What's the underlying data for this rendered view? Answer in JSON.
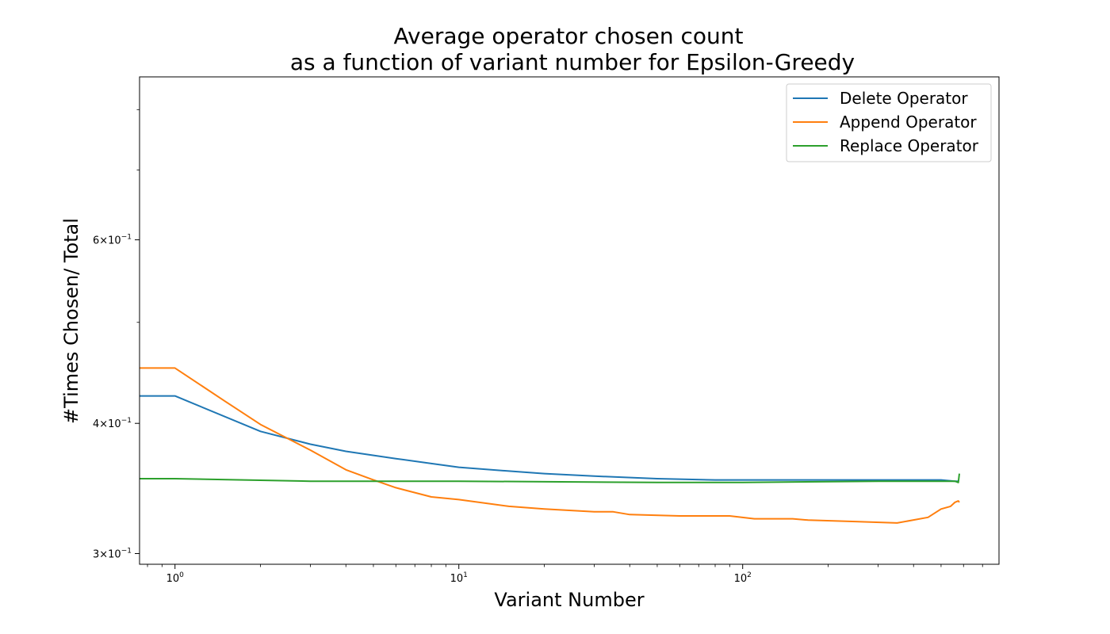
{
  "chart_data": {
    "type": "line",
    "title_line1": "Average operator chosen count",
    "title_line2": "as a function of variant number for Epsilon-Greedy",
    "xlabel": "Variant Number",
    "ylabel": "#Times Chosen/ Total",
    "xscale": "log",
    "yscale": "log",
    "xlim": [
      0.75,
      800
    ],
    "ylim": [
      0.293,
      0.86
    ],
    "xticks": [
      {
        "value": 1,
        "base": "10",
        "exp": "0"
      },
      {
        "value": 10,
        "base": "10",
        "exp": "1"
      },
      {
        "value": 100,
        "base": "10",
        "exp": "2"
      }
    ],
    "yticks": [
      {
        "value": 0.3,
        "mant": "3",
        "base": "10",
        "exp": "−1"
      },
      {
        "value": 0.4,
        "mant": "4",
        "base": "10",
        "exp": "−1"
      },
      {
        "value": 0.6,
        "mant": "6",
        "base": "10",
        "exp": "−1"
      }
    ],
    "yminor": [
      0.5,
      0.7,
      0.8
    ],
    "grid": false,
    "legend_position": "top-right",
    "series": [
      {
        "name": "Delete Operator",
        "color": "#1f77b4",
        "points": [
          [
            0.75,
            0.425
          ],
          [
            1,
            0.425
          ],
          [
            2,
            0.393
          ],
          [
            3,
            0.382
          ],
          [
            4,
            0.376
          ],
          [
            6,
            0.37
          ],
          [
            8,
            0.366
          ],
          [
            10,
            0.363
          ],
          [
            15,
            0.36
          ],
          [
            20,
            0.358
          ],
          [
            30,
            0.356
          ],
          [
            50,
            0.354
          ],
          [
            80,
            0.353
          ],
          [
            100,
            0.353
          ],
          [
            200,
            0.353
          ],
          [
            300,
            0.353
          ],
          [
            500,
            0.353
          ],
          [
            560,
            0.352
          ],
          [
            575,
            0.352
          ]
        ]
      },
      {
        "name": "Append Operator",
        "color": "#ff7f0e",
        "points": [
          [
            0.75,
            0.452
          ],
          [
            1,
            0.452
          ],
          [
            1.5,
            0.42
          ],
          [
            2,
            0.399
          ],
          [
            3,
            0.377
          ],
          [
            4,
            0.361
          ],
          [
            5,
            0.353
          ],
          [
            6,
            0.347
          ],
          [
            8,
            0.34
          ],
          [
            10,
            0.338
          ],
          [
            15,
            0.333
          ],
          [
            20,
            0.331
          ],
          [
            30,
            0.329
          ],
          [
            35,
            0.329
          ],
          [
            40,
            0.327
          ],
          [
            60,
            0.326
          ],
          [
            90,
            0.326
          ],
          [
            110,
            0.324
          ],
          [
            150,
            0.324
          ],
          [
            170,
            0.323
          ],
          [
            250,
            0.322
          ],
          [
            350,
            0.321
          ],
          [
            450,
            0.325
          ],
          [
            500,
            0.331
          ],
          [
            540,
            0.333
          ],
          [
            560,
            0.336
          ],
          [
            575,
            0.337
          ],
          [
            580,
            0.336
          ]
        ]
      },
      {
        "name": "Replace Operator",
        "color": "#2ca02c",
        "points": [
          [
            0.75,
            0.354
          ],
          [
            1,
            0.354
          ],
          [
            3,
            0.352
          ],
          [
            10,
            0.352
          ],
          [
            50,
            0.351
          ],
          [
            100,
            0.351
          ],
          [
            300,
            0.352
          ],
          [
            560,
            0.352
          ],
          [
            575,
            0.351
          ],
          [
            580,
            0.358
          ]
        ]
      }
    ]
  }
}
